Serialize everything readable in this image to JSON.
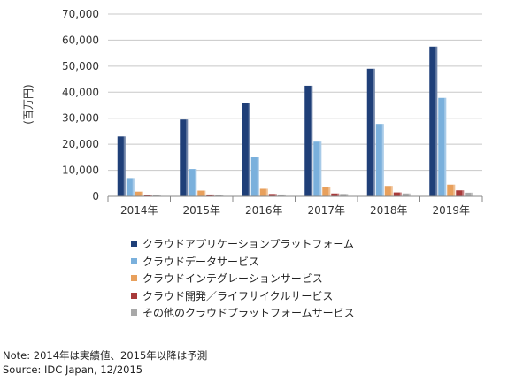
{
  "chart_data": {
    "type": "bar",
    "categories": [
      "2014年",
      "2015年",
      "2016年",
      "2017年",
      "2018年",
      "2019年"
    ],
    "series": [
      {
        "name": "クラウドアプリケーションプラットフォーム",
        "color": "#1f3f78",
        "values": [
          23000,
          29500,
          36000,
          42500,
          49000,
          57500
        ]
      },
      {
        "name": "クラウドデータサービス",
        "color": "#7ab0dc",
        "values": [
          7000,
          10500,
          15000,
          21000,
          27800,
          37800
        ]
      },
      {
        "name": "クラウドインテグレーションサービス",
        "color": "#e8a05c",
        "values": [
          1800,
          2200,
          2900,
          3400,
          4000,
          4500
        ]
      },
      {
        "name": "クラウド開発／ライフサイクルサービス",
        "color": "#a83a3a",
        "values": [
          600,
          700,
          900,
          1100,
          1500,
          2300
        ]
      },
      {
        "name": "その他のクラウドプラットフォームサービス",
        "color": "#a8a8a8",
        "values": [
          400,
          500,
          700,
          900,
          1100,
          1400
        ]
      }
    ],
    "ylabel": "(百万円)",
    "ylim": [
      0,
      70000
    ],
    "yticks": [
      "0",
      "10,000",
      "20,000",
      "30,000",
      "40,000",
      "50,000",
      "60,000",
      "70,000"
    ],
    "legend_position": "bottom"
  },
  "notes": {
    "note": "Note: 2014年は実績値、2015年以降は予測",
    "source": "Source: IDC Japan, 12/2015"
  }
}
